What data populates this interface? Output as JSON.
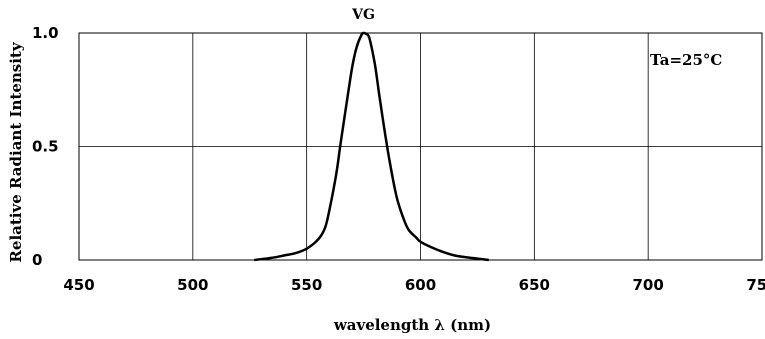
{
  "chart_data": {
    "type": "line",
    "title": "VG",
    "xlabel": "wavelength λ  (nm)",
    "ylabel": "Relative Radiant Intensity",
    "annotation": "Ta=25°C",
    "xlim": [
      450,
      750
    ],
    "ylim": [
      0,
      1.0
    ],
    "x_ticks": [
      450,
      500,
      550,
      600,
      650,
      700,
      750
    ],
    "x_tick_labels": [
      "450",
      "500",
      "550",
      "600",
      "650",
      "700",
      "750"
    ],
    "y_ticks": [
      0,
      0.5,
      1.0
    ],
    "y_tick_labels": [
      "0",
      "0.5",
      "1.0"
    ],
    "grid": true,
    "line_color": "#000000",
    "series": [
      {
        "x": [
          527,
          535,
          540,
          545,
          550,
          555,
          558,
          560,
          563,
          565,
          568,
          570,
          572,
          574,
          575,
          577,
          578,
          580,
          582,
          585,
          588,
          590,
          593,
          595,
          598,
          600,
          605,
          610,
          615,
          620,
          625,
          630
        ],
        "y": [
          0.0,
          0.01,
          0.02,
          0.03,
          0.05,
          0.09,
          0.14,
          0.22,
          0.38,
          0.52,
          0.72,
          0.85,
          0.94,
          0.99,
          1.0,
          0.99,
          0.96,
          0.86,
          0.72,
          0.52,
          0.35,
          0.26,
          0.17,
          0.13,
          0.1,
          0.08,
          0.055,
          0.035,
          0.02,
          0.012,
          0.006,
          0.0
        ]
      }
    ]
  }
}
